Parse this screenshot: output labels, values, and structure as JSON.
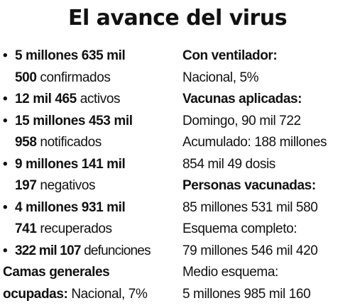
{
  "title": "El avance del virus",
  "left": {
    "confirmados": {
      "bullet": "•",
      "num_a": "5 millones 635 mil",
      "num_b": "500",
      "label": "confirmados"
    },
    "activos": {
      "bullet": "•",
      "num": "12 mil 465",
      "label": "activos"
    },
    "notificados": {
      "bullet": "•",
      "num_a": "15 millones 453 mil",
      "num_b": "958",
      "label": "notificados"
    },
    "negativos": {
      "bullet": "•",
      "num_a": "9 millones 141 mil",
      "num_b": "197",
      "label": "negativos"
    },
    "recuperados": {
      "bullet": "•",
      "num_a": "4 millones 931 mil",
      "num_b": "741",
      "label": "recuperados"
    },
    "defunciones": {
      "bullet": "•",
      "num": "322 mil 107",
      "label": "defunciones"
    },
    "camas": {
      "head_a": "Camas generales",
      "head_b": "ocupadas:",
      "value": "Nacional, 7%"
    }
  },
  "right": {
    "ventilador_head": "Con ventilador:",
    "ventilador_value": "Nacional, 5%",
    "vacunas_head": "Vacunas aplicadas:",
    "vacunas_domingo": "Domingo, 90 mil 722",
    "vacunas_acum_a": "Acumulado: 188 millones",
    "vacunas_acum_b": "854 mil 49 dosis",
    "personas_head": "Personas vacunadas:",
    "personas_total": "85 millones 531 mil 580",
    "esquema_completo_label": "Esquema completo:",
    "esquema_completo_value": "79 millones 546 mil 420",
    "medio_esquema_label": "Medio esquema:",
    "medio_esquema_value": "5 millones 985 mil 160"
  }
}
